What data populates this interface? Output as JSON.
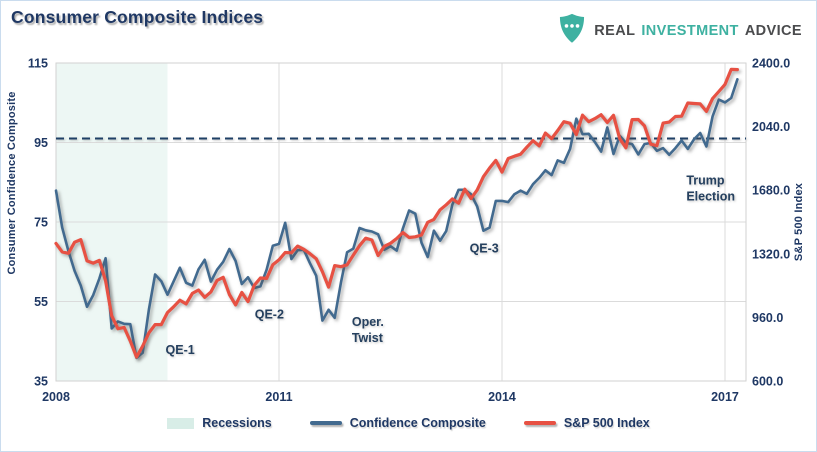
{
  "header": {
    "title": "Consumer Composite Indices",
    "logo": {
      "icon": "shield-dots-icon",
      "words": [
        "REAL",
        "INVESTMENT",
        "ADVICE"
      ]
    }
  },
  "colors": {
    "navy_text": "#1F3864",
    "confidence_line": "#426A8F",
    "sp500_line": "#E75143",
    "dashed_reference": "#1F4066",
    "gridline": "#DBDBDB",
    "plot_border": "#D2D2D2",
    "recession_fill": "#D8EDE7",
    "annotation_text": "#25405F",
    "logo_teal": "#3EB1A1",
    "logo_gray": "#4A4B4D"
  },
  "chart_data": {
    "type": "line",
    "title": "Consumer Composite Indices",
    "x_ticks": [
      "2008",
      "2011",
      "2014",
      "2017"
    ],
    "x_range": [
      2008.0,
      2017.28
    ],
    "x_unit": "monthly from 2008-01 to 2017-03",
    "grid": true,
    "left_axis": {
      "label": "Consumer Confidence Composite",
      "ticks": [
        "115",
        "95",
        "75",
        "55",
        "35"
      ],
      "range": [
        35,
        115
      ]
    },
    "right_axis": {
      "label": "S&P 500 Index",
      "ticks": [
        "2400.0",
        "2040.0",
        "1680.0",
        "1320.0",
        "960.0",
        "600.0"
      ],
      "range": [
        600,
        2400
      ]
    },
    "reference_line": {
      "axis": "left",
      "value": 96,
      "style": "dashed"
    },
    "recession_band": {
      "from": 2008.0,
      "to": 2009.5,
      "label": "Recessions"
    },
    "legend_position": "bottom-center",
    "legend": [
      {
        "label": "Recessions",
        "swatch": "area",
        "color": "#D8EDE7"
      },
      {
        "label": "Confidence Composite",
        "swatch": "line",
        "color": "#426A8F"
      },
      {
        "label": "S&P 500 Index",
        "swatch": "line",
        "color": "#E75143"
      }
    ],
    "annotations": [
      {
        "lines": [
          "QE-1"
        ],
        "x": 2009.67,
        "v": 42.9,
        "align": "center"
      },
      {
        "lines": [
          "QE-2"
        ],
        "x": 2010.87,
        "v": 51.8,
        "align": "center"
      },
      {
        "lines": [
          "Oper.",
          "Twist"
        ],
        "x": 2011.98,
        "v": 48.0,
        "align": "left"
      },
      {
        "lines": [
          "QE-3"
        ],
        "x": 2013.76,
        "v": 68.5,
        "align": "center"
      },
      {
        "lines": [
          "Trump",
          "Election"
        ],
        "x": 2016.48,
        "v": 83.5,
        "align": "left"
      }
    ],
    "series": [
      {
        "name": "Confidence Composite",
        "axis": "left",
        "color": "#426A8F",
        "width": 2.6,
        "values": [
          82.9,
          73.6,
          67.7,
          62.7,
          59,
          53.7,
          56.6,
          60.8,
          65.9,
          48.2,
          50,
          49.4,
          49.3,
          40.8,
          42.1,
          53,
          61.8,
          60.1,
          56.7,
          60.1,
          63.5,
          59.7,
          59,
          63.1,
          65.5,
          60,
          63,
          65,
          68.2,
          65.2,
          59.4,
          61.1,
          58.4,
          58.8,
          63,
          69,
          69.5,
          74.8,
          65.7,
          67.9,
          68,
          64.6,
          61.5,
          50.2,
          52.9,
          50.9,
          59.7,
          67.4,
          68.3,
          73.5,
          72.9,
          72.6,
          71.9,
          68,
          68.9,
          67.8,
          73.4,
          77.9,
          77.1,
          69.8,
          66.2,
          72.8,
          70.3,
          72.7,
          79.4,
          83.1,
          83.1,
          82,
          78.9,
          72.8,
          73.6,
          80.3,
          80.3,
          80,
          82,
          82.9,
          82.1,
          84.5,
          86.1,
          88,
          86.8,
          90.5,
          89.9,
          93.4,
          101,
          97.1,
          97.2,
          95.1,
          92.7,
          98.8,
          92.1,
          96.7,
          94.9,
          94.6,
          92,
          94.6,
          94.9,
          92.9,
          93.6,
          91.9,
          93.6,
          95.5,
          93.4,
          95.8,
          97.4,
          94,
          101.6,
          105.8,
          105.1,
          106.2,
          110.9
        ]
      },
      {
        "name": "S&P 500 Index",
        "axis": "right",
        "color": "#E75143",
        "width": 3.2,
        "values": [
          1378.6,
          1330.6,
          1322.7,
          1385.6,
          1400.4,
          1280,
          1267.4,
          1282.8,
          1166.4,
          968.8,
          896.2,
          903.3,
          825.9,
          735.1,
          797.9,
          872.8,
          919.1,
          919.3,
          987.5,
          1020.6,
          1057.1,
          1036.2,
          1095.6,
          1115.1,
          1073.9,
          1104.5,
          1169.4,
          1186.7,
          1089.4,
          1030.7,
          1101.6,
          1049.3,
          1141.2,
          1183.3,
          1180.6,
          1257.6,
          1286.1,
          1327.2,
          1325.8,
          1363.6,
          1345.2,
          1320.6,
          1292.3,
          1218.9,
          1131.4,
          1253.3,
          1247,
          1257.6,
          1312.4,
          1365.7,
          1408.5,
          1397.9,
          1310.3,
          1362.2,
          1379.3,
          1406.6,
          1440.7,
          1412.2,
          1416.2,
          1426.2,
          1498.1,
          1514.7,
          1569.2,
          1597.6,
          1630.7,
          1606.3,
          1685.7,
          1633,
          1681.5,
          1756.5,
          1805.8,
          1848.4,
          1782.6,
          1859.5,
          1872.3,
          1884,
          1923.6,
          1960.2,
          1930.7,
          2003.4,
          1972.3,
          2018.1,
          2067.6,
          2058.9,
          1995,
          2104.5,
          2067.9,
          2085.5,
          2107.4,
          2063.1,
          2103.8,
          1972.2,
          1920,
          2079.4,
          2080.4,
          2043.9,
          1940.2,
          1932.2,
          2059.7,
          2065.3,
          2097,
          2098.9,
          2173.6,
          2171,
          2168.3,
          2126.2,
          2198.8,
          2238.8,
          2278.9,
          2363.6,
          2362.7
        ]
      }
    ]
  }
}
